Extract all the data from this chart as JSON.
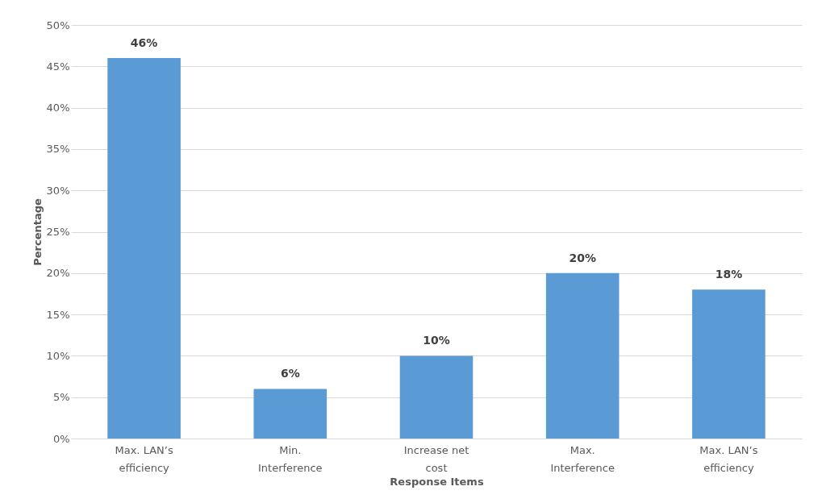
{
  "chart_data": {
    "type": "bar",
    "xlabel": "Response Items",
    "ylabel": "Percentage",
    "categories": [
      "Max. LAN’s\nefficiency",
      "Min.\nInterference",
      "Increase net\ncost",
      "Max.\nInterference",
      "Max. LAN’s\nefficiency"
    ],
    "values": [
      46,
      6,
      10,
      20,
      18
    ],
    "value_labels": [
      "46%",
      "6%",
      "10%",
      "20%",
      "18%"
    ],
    "color": "#5b9bd5",
    "ylim": [
      0,
      50
    ],
    "yticks": [
      {
        "value": 0,
        "label": "0%"
      },
      {
        "value": 5,
        "label": "5%"
      },
      {
        "value": 10,
        "label": "10%"
      },
      {
        "value": 15,
        "label": "15%"
      },
      {
        "value": 20,
        "label": "20%"
      },
      {
        "value": 25,
        "label": "25%"
      },
      {
        "value": 30,
        "label": "30%"
      },
      {
        "value": 35,
        "label": "35%"
      },
      {
        "value": 40,
        "label": "40%"
      },
      {
        "value": 45,
        "label": "45%"
      },
      {
        "value": 50,
        "label": "50%"
      }
    ],
    "grid": "y"
  }
}
